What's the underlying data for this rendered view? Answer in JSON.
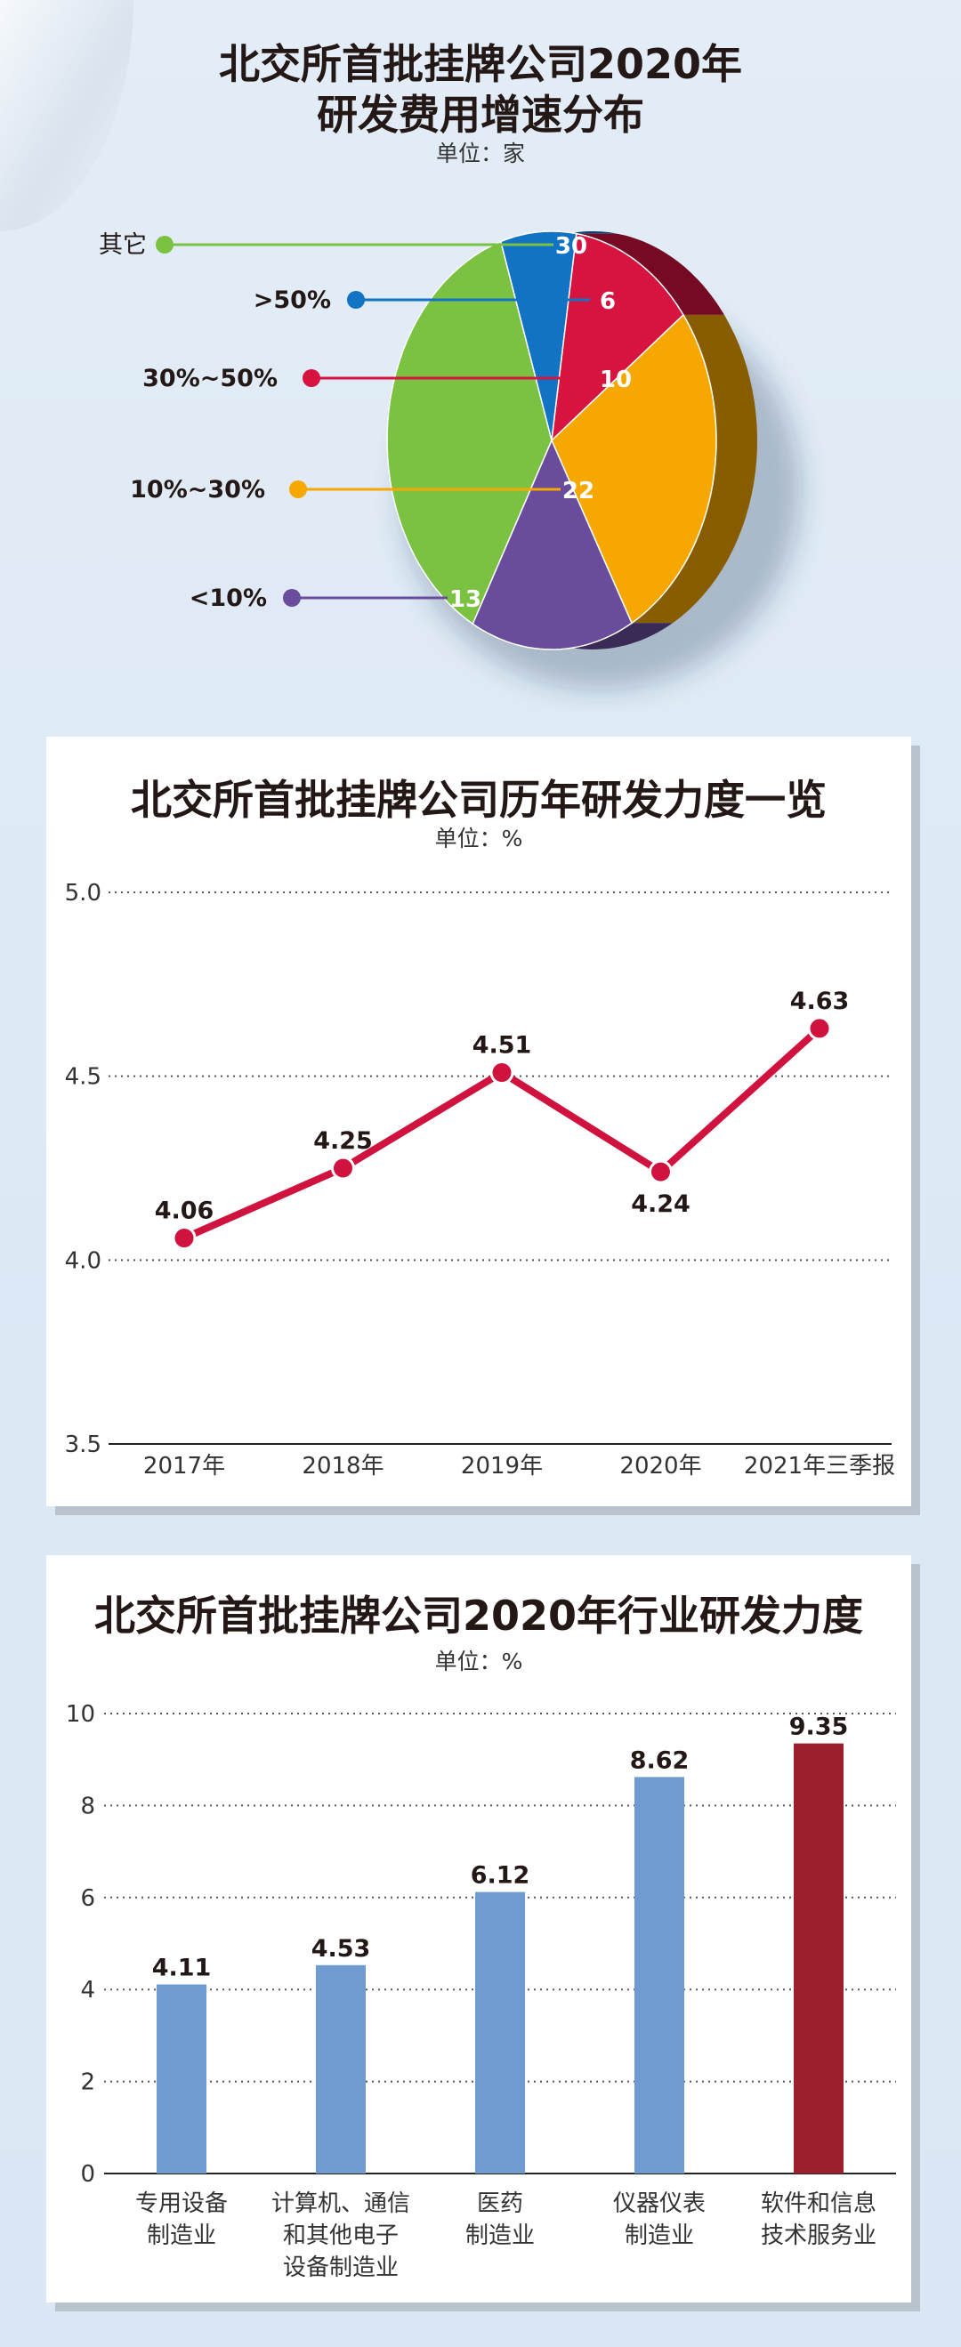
{
  "pie": {
    "title_line1": "北交所首批挂牌公司2020年",
    "title_line2": "研发费用增速分布",
    "unit": "单位：家",
    "chart_data": {
      "type": "pie",
      "title": "北交所首批挂牌公司2020年研发费用增速分布",
      "unit": "单位：家",
      "slices": [
        {
          "label": "其它",
          "value": 30,
          "color": "#7cc242"
        },
        {
          "label": ">50%",
          "value": 6,
          "color": "#1273c4"
        },
        {
          "label": "30%~50%",
          "value": 10,
          "color": "#d71340"
        },
        {
          "label": "10%~30%",
          "value": 22,
          "color": "#f7a800"
        },
        {
          "label": "<10%",
          "value": 13,
          "color": "#6a4c9c"
        }
      ]
    }
  },
  "line": {
    "title": "北交所首批挂牌公司历年研发力度一览",
    "unit": "单位：%",
    "chart_data": {
      "type": "line",
      "title": "北交所首批挂牌公司历年研发力度一览",
      "unit": "单位：%",
      "x": [
        "2017年",
        "2018年",
        "2019年",
        "2020年",
        "2021年三季报"
      ],
      "values": [
        4.06,
        4.25,
        4.51,
        4.24,
        4.63
      ],
      "value_labels": [
        "4.06",
        "4.25",
        "4.51",
        "4.24",
        "4.63"
      ],
      "yticks": [
        "3.5",
        "4.0",
        "4.5",
        "5.0"
      ],
      "ylim": [
        3.5,
        5.0
      ],
      "grid": true,
      "color": "#d0123e"
    }
  },
  "bar": {
    "title": "北交所首批挂牌公司2020年行业研发力度",
    "unit": "单位：%",
    "chart_data": {
      "type": "bar",
      "title": "北交所首批挂牌公司2020年行业研发力度",
      "unit": "单位：%",
      "categories": [
        [
          "专用设备",
          "制造业"
        ],
        [
          "计算机、通信",
          "和其他电子",
          "设备制造业"
        ],
        [
          "医药",
          "制造业"
        ],
        [
          "仪器仪表",
          "制造业"
        ],
        [
          "软件和信息",
          "技术服务业"
        ]
      ],
      "values": [
        4.11,
        4.53,
        6.12,
        8.62,
        9.35
      ],
      "value_labels": [
        "4.11",
        "4.53",
        "6.12",
        "8.62",
        "9.35"
      ],
      "colors": [
        "#6f9bd0",
        "#6f9bd0",
        "#6f9bd0",
        "#6f9bd0",
        "#9b1f2c"
      ],
      "yticks": [
        "0",
        "2",
        "4",
        "6",
        "8",
        "10"
      ],
      "ylim": [
        0,
        10
      ],
      "grid": true
    }
  }
}
